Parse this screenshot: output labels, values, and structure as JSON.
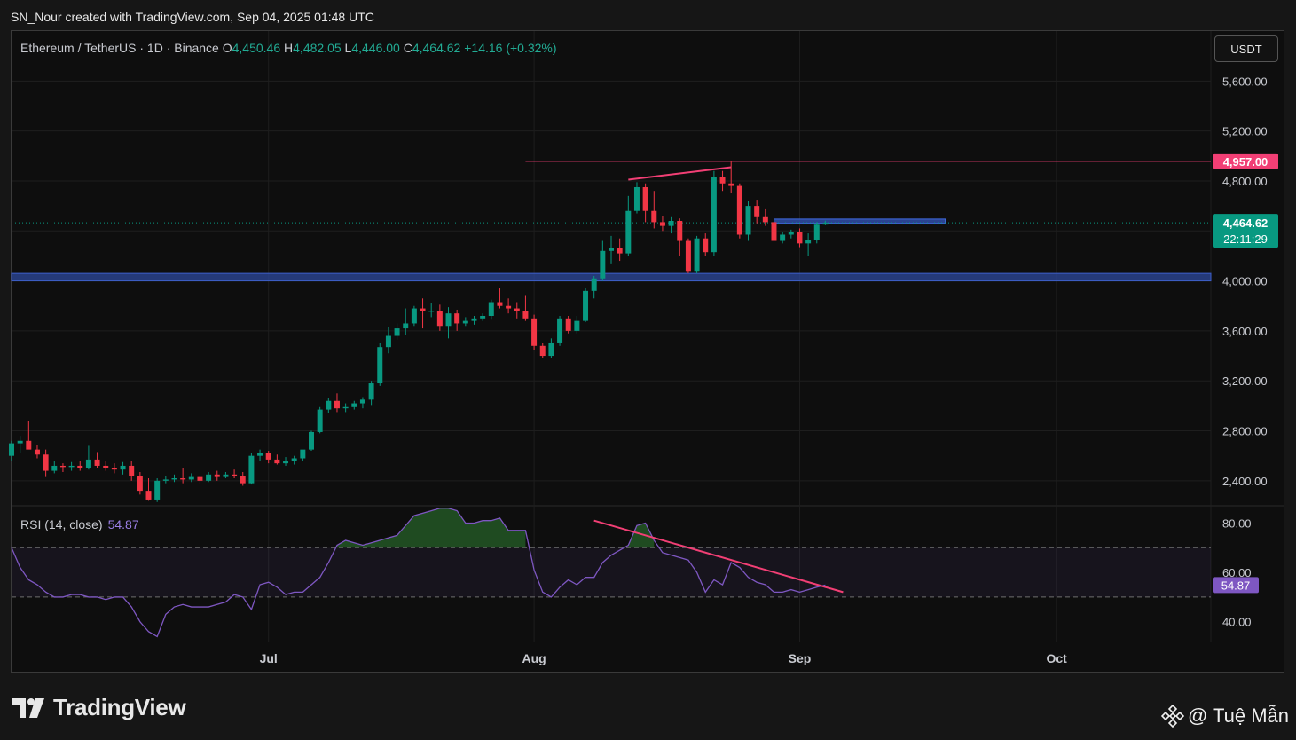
{
  "header": {
    "text": "SN_Nour created with TradingView.com, Sep 04, 2025 01:48 UTC"
  },
  "symbol": {
    "name": "Ethereum / TetherUS · 1D · Binance",
    "o_label": "O",
    "o_value": "4,450.46",
    "h_label": "H",
    "h_value": "4,482.05",
    "l_label": "L",
    "l_value": "4,446.00",
    "c_label": "C",
    "c_value": "4,464.62",
    "change": "+14.16 (+0.32%)"
  },
  "currency_button": "USDT",
  "branding": {
    "logo_text": "TradingView",
    "author": "@ Tuệ Mẫn"
  },
  "colors": {
    "up": "#089981",
    "down": "#f23645",
    "background": "#0e0e0e",
    "rsi": "#7e57c2",
    "trendline": "#f23f75",
    "zone": "#2e4a9e",
    "resistance": "#f23f75"
  },
  "chart_data": [
    {
      "type": "candlestick",
      "title": "Ethereum / TetherUS · 1D · Binance",
      "ylim": [
        2200,
        6000
      ],
      "y_ticks": [
        "5,600.00",
        "5,200.00",
        "4,800.00",
        "4,000.00",
        "3,600.00",
        "3,200.00",
        "2,800.00",
        "2,400.00"
      ],
      "y_tick_values": [
        5600,
        5200,
        4800,
        4000,
        3600,
        3200,
        2800,
        2400
      ],
      "x_ticks": [
        "Jul",
        "Aug",
        "Sep",
        "Oct"
      ],
      "x_tick_dates": [
        "2025-07-01",
        "2025-08-01",
        "2025-09-01",
        "2025-10-01"
      ],
      "x_range": [
        "2025-06-01",
        "2025-10-19"
      ],
      "grid": true,
      "last_price": {
        "label": "4,464.62",
        "countdown": "22:11:29",
        "value": 4464.62
      },
      "resistance_level": {
        "label": "4,957.00",
        "value": 4957,
        "from": "2025-07-31"
      },
      "support_zone": {
        "low": 4000,
        "high": 4060
      },
      "supply_zone": {
        "from": "2025-08-29",
        "to": "2025-09-18",
        "low": 4460,
        "high": 4495
      },
      "trendline": {
        "x": [
          "2025-08-12",
          "2025-08-24"
        ],
        "y": [
          4810,
          4910
        ]
      },
      "candles": [
        [
          "2025-06-01",
          2600,
          2720,
          2560,
          2700
        ],
        [
          "2025-06-02",
          2700,
          2760,
          2620,
          2720
        ],
        [
          "2025-06-03",
          2720,
          2880,
          2680,
          2650
        ],
        [
          "2025-06-04",
          2650,
          2690,
          2580,
          2610
        ],
        [
          "2025-06-05",
          2610,
          2650,
          2430,
          2480
        ],
        [
          "2025-06-06",
          2480,
          2560,
          2460,
          2520
        ],
        [
          "2025-06-07",
          2520,
          2540,
          2470,
          2510
        ],
        [
          "2025-06-08",
          2510,
          2550,
          2480,
          2520
        ],
        [
          "2025-06-09",
          2520,
          2560,
          2480,
          2500
        ],
        [
          "2025-06-10",
          2500,
          2680,
          2490,
          2570
        ],
        [
          "2025-06-11",
          2570,
          2630,
          2500,
          2520
        ],
        [
          "2025-06-12",
          2520,
          2560,
          2480,
          2500
        ],
        [
          "2025-06-13",
          2500,
          2540,
          2460,
          2490
        ],
        [
          "2025-06-14",
          2490,
          2550,
          2450,
          2520
        ],
        [
          "2025-06-15",
          2520,
          2560,
          2400,
          2440
        ],
        [
          "2025-06-16",
          2440,
          2470,
          2290,
          2320
        ],
        [
          "2025-06-17",
          2320,
          2420,
          2240,
          2250
        ],
        [
          "2025-06-18",
          2250,
          2420,
          2230,
          2400
        ],
        [
          "2025-06-19",
          2400,
          2440,
          2380,
          2410
        ],
        [
          "2025-06-20",
          2410,
          2450,
          2390,
          2420
        ],
        [
          "2025-06-21",
          2420,
          2500,
          2380,
          2410
        ],
        [
          "2025-06-22",
          2410,
          2460,
          2390,
          2430
        ],
        [
          "2025-06-23",
          2430,
          2440,
          2370,
          2400
        ],
        [
          "2025-06-24",
          2400,
          2470,
          2390,
          2450
        ],
        [
          "2025-06-25",
          2450,
          2480,
          2400,
          2430
        ],
        [
          "2025-06-26",
          2430,
          2470,
          2420,
          2450
        ],
        [
          "2025-06-27",
          2450,
          2490,
          2420,
          2440
        ],
        [
          "2025-06-28",
          2440,
          2470,
          2360,
          2380
        ],
        [
          "2025-06-29",
          2380,
          2620,
          2370,
          2600
        ],
        [
          "2025-06-30",
          2600,
          2650,
          2560,
          2620
        ],
        [
          "2025-07-01",
          2620,
          2640,
          2540,
          2570
        ],
        [
          "2025-07-02",
          2570,
          2610,
          2530,
          2540
        ],
        [
          "2025-07-03",
          2540,
          2590,
          2520,
          2560
        ],
        [
          "2025-07-04",
          2560,
          2600,
          2530,
          2580
        ],
        [
          "2025-07-05",
          2580,
          2640,
          2560,
          2650
        ],
        [
          "2025-07-06",
          2650,
          2800,
          2640,
          2790
        ],
        [
          "2025-07-07",
          2790,
          2990,
          2780,
          2970
        ],
        [
          "2025-07-08",
          2970,
          3060,
          2940,
          3040
        ],
        [
          "2025-07-09",
          3040,
          3100,
          2950,
          2980
        ],
        [
          "2025-07-10",
          2980,
          3020,
          2950,
          2990
        ],
        [
          "2025-07-11",
          2990,
          3040,
          2970,
          3020
        ],
        [
          "2025-07-12",
          3020,
          3070,
          2980,
          3050
        ],
        [
          "2025-07-13",
          3050,
          3200,
          3000,
          3180
        ],
        [
          "2025-07-14",
          3180,
          3500,
          3160,
          3470
        ],
        [
          "2025-07-15",
          3470,
          3630,
          3420,
          3560
        ],
        [
          "2025-07-16",
          3560,
          3660,
          3530,
          3620
        ],
        [
          "2025-07-17",
          3620,
          3780,
          3570,
          3660
        ],
        [
          "2025-07-18",
          3660,
          3800,
          3640,
          3780
        ],
        [
          "2025-07-19",
          3780,
          3860,
          3620,
          3760
        ],
        [
          "2025-07-20",
          3760,
          3820,
          3710,
          3760
        ],
        [
          "2025-07-21",
          3760,
          3810,
          3600,
          3640
        ],
        [
          "2025-07-22",
          3640,
          3790,
          3540,
          3740
        ],
        [
          "2025-07-23",
          3740,
          3770,
          3600,
          3660
        ],
        [
          "2025-07-24",
          3660,
          3710,
          3640,
          3680
        ],
        [
          "2025-07-25",
          3680,
          3720,
          3650,
          3700
        ],
        [
          "2025-07-26",
          3700,
          3740,
          3680,
          3720
        ],
        [
          "2025-07-27",
          3720,
          3850,
          3690,
          3830
        ],
        [
          "2025-07-28",
          3830,
          3940,
          3780,
          3800
        ],
        [
          "2025-07-29",
          3800,
          3860,
          3740,
          3780
        ],
        [
          "2025-07-30",
          3780,
          3830,
          3700,
          3760
        ],
        [
          "2025-07-31",
          3760,
          3880,
          3680,
          3700
        ],
        [
          "2025-08-01",
          3700,
          3730,
          3450,
          3480
        ],
        [
          "2025-08-02",
          3480,
          3500,
          3380,
          3400
        ],
        [
          "2025-08-03",
          3400,
          3540,
          3380,
          3500
        ],
        [
          "2025-08-04",
          3500,
          3720,
          3480,
          3700
        ],
        [
          "2025-08-05",
          3700,
          3720,
          3580,
          3600
        ],
        [
          "2025-08-06",
          3600,
          3720,
          3580,
          3680
        ],
        [
          "2025-08-07",
          3680,
          3940,
          3670,
          3920
        ],
        [
          "2025-08-08",
          3920,
          4040,
          3860,
          4020
        ],
        [
          "2025-08-09",
          4020,
          4320,
          4000,
          4240
        ],
        [
          "2025-08-10",
          4240,
          4360,
          4140,
          4260
        ],
        [
          "2025-08-11",
          4260,
          4340,
          4160,
          4220
        ],
        [
          "2025-08-12",
          4220,
          4680,
          4200,
          4560
        ],
        [
          "2025-08-13",
          4560,
          4790,
          4540,
          4750
        ],
        [
          "2025-08-14",
          4750,
          4780,
          4470,
          4560
        ],
        [
          "2025-08-15",
          4560,
          4720,
          4420,
          4470
        ],
        [
          "2025-08-16",
          4470,
          4520,
          4400,
          4440
        ],
        [
          "2025-08-17",
          4440,
          4510,
          4380,
          4480
        ],
        [
          "2025-08-18",
          4480,
          4500,
          4200,
          4320
        ],
        [
          "2025-08-19",
          4320,
          4340,
          4060,
          4080
        ],
        [
          "2025-08-20",
          4080,
          4360,
          4060,
          4340
        ],
        [
          "2025-08-21",
          4340,
          4380,
          4200,
          4230
        ],
        [
          "2025-08-22",
          4230,
          4880,
          4200,
          4830
        ],
        [
          "2025-08-23",
          4830,
          4880,
          4720,
          4780
        ],
        [
          "2025-08-24",
          4780,
          4957,
          4700,
          4760
        ],
        [
          "2025-08-25",
          4760,
          4780,
          4340,
          4370
        ],
        [
          "2025-08-26",
          4370,
          4640,
          4320,
          4600
        ],
        [
          "2025-08-27",
          4600,
          4650,
          4460,
          4510
        ],
        [
          "2025-08-28",
          4510,
          4580,
          4440,
          4470
        ],
        [
          "2025-08-29",
          4470,
          4480,
          4250,
          4320
        ],
        [
          "2025-08-30",
          4320,
          4390,
          4300,
          4370
        ],
        [
          "2025-08-31",
          4370,
          4410,
          4340,
          4390
        ],
        [
          "2025-09-01",
          4390,
          4420,
          4270,
          4300
        ],
        [
          "2025-09-02",
          4300,
          4380,
          4200,
          4330
        ],
        [
          "2025-09-03",
          4330,
          4470,
          4300,
          4450
        ],
        [
          "2025-09-04",
          4450.46,
          4482.05,
          4446.0,
          4464.62
        ]
      ]
    },
    {
      "type": "line",
      "title": "RSI (14, close)",
      "value_label": "54.87",
      "ylim": [
        32,
        87
      ],
      "y_ticks": [
        "80.00",
        "60.00",
        "40.00"
      ],
      "y_tick_values": [
        80,
        60,
        40
      ],
      "bands": [
        50,
        70
      ],
      "trendline": {
        "x": [
          "2025-08-08",
          "2025-09-04"
        ],
        "y": [
          81,
          52
        ]
      },
      "x": [
        "2025-06-01",
        "2025-06-02",
        "2025-06-03",
        "2025-06-04",
        "2025-06-05",
        "2025-06-06",
        "2025-06-07",
        "2025-06-08",
        "2025-06-09",
        "2025-06-10",
        "2025-06-11",
        "2025-06-12",
        "2025-06-13",
        "2025-06-14",
        "2025-06-15",
        "2025-06-16",
        "2025-06-17",
        "2025-06-18",
        "2025-06-19",
        "2025-06-20",
        "2025-06-21",
        "2025-06-22",
        "2025-06-23",
        "2025-06-24",
        "2025-06-25",
        "2025-06-26",
        "2025-06-27",
        "2025-06-28",
        "2025-06-29",
        "2025-06-30",
        "2025-07-01",
        "2025-07-02",
        "2025-07-03",
        "2025-07-04",
        "2025-07-05",
        "2025-07-06",
        "2025-07-07",
        "2025-07-08",
        "2025-07-09",
        "2025-07-10",
        "2025-07-11",
        "2025-07-12",
        "2025-07-13",
        "2025-07-14",
        "2025-07-15",
        "2025-07-16",
        "2025-07-17",
        "2025-07-18",
        "2025-07-19",
        "2025-07-20",
        "2025-07-21",
        "2025-07-22",
        "2025-07-23",
        "2025-07-24",
        "2025-07-25",
        "2025-07-26",
        "2025-07-27",
        "2025-07-28",
        "2025-07-29",
        "2025-07-30",
        "2025-07-31",
        "2025-08-01",
        "2025-08-02",
        "2025-08-03",
        "2025-08-04",
        "2025-08-05",
        "2025-08-06",
        "2025-08-07",
        "2025-08-08",
        "2025-08-09",
        "2025-08-10",
        "2025-08-11",
        "2025-08-12",
        "2025-08-13",
        "2025-08-14",
        "2025-08-15",
        "2025-08-16",
        "2025-08-17",
        "2025-08-18",
        "2025-08-19",
        "2025-08-20",
        "2025-08-21",
        "2025-08-22",
        "2025-08-23",
        "2025-08-24",
        "2025-08-25",
        "2025-08-26",
        "2025-08-27",
        "2025-08-28",
        "2025-08-29",
        "2025-08-30",
        "2025-08-31",
        "2025-09-01",
        "2025-09-02",
        "2025-09-03",
        "2025-09-04"
      ],
      "values": [
        70,
        62,
        57,
        55,
        52,
        50,
        50,
        51,
        51,
        50,
        50,
        49,
        50,
        50,
        46,
        40,
        36,
        34,
        43,
        46,
        47,
        46,
        46,
        46,
        47,
        48,
        51,
        50,
        45,
        55,
        56,
        54,
        51,
        52,
        52,
        55,
        58,
        64,
        71,
        73,
        72,
        71,
        72,
        73,
        74,
        75,
        79,
        83,
        84,
        85,
        86,
        86,
        85,
        80,
        80,
        81,
        81,
        82,
        77,
        77,
        77,
        61,
        52,
        50,
        54,
        57,
        55,
        58,
        58,
        64,
        67,
        69,
        71,
        79,
        80,
        73,
        68,
        67,
        66,
        65,
        60,
        52,
        57,
        55,
        64,
        62,
        58,
        56,
        55,
        52,
        52,
        53,
        52,
        53,
        54,
        54.87
      ]
    }
  ]
}
